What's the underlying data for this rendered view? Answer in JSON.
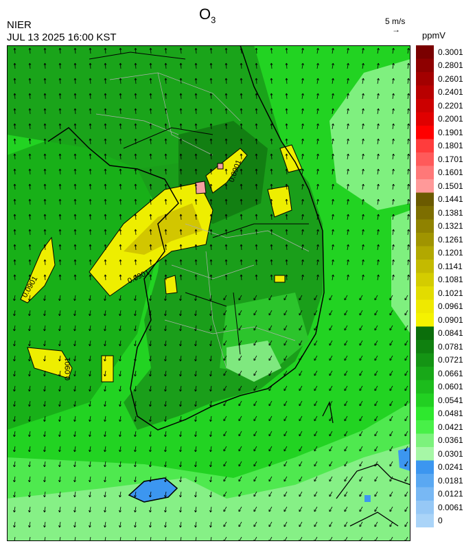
{
  "header": {
    "title_main": "O",
    "title_sub": "3",
    "agency": "NIER",
    "datetime": "JUL 13 2025 16:00 KST",
    "wind_reference": "5 m/s",
    "wind_arrow": "→",
    "unit": "ppmV"
  },
  "map": {
    "contour_label": "0.0901",
    "colors": {
      "ocean_dark": "#1fbd1f",
      "ocean": "#22d322",
      "land_green": "#1aa41a",
      "land_dark": "#0f7d0f",
      "light_green": "#7ff07f",
      "pale_green": "#9cf59c",
      "yellow": "#eeee00",
      "olive_yellow": "#d8d000",
      "pink": "#f4a0a0",
      "blue": "#3c96f0",
      "coast": "#000000",
      "admin": "#b0b0b0"
    }
  },
  "legend": {
    "labels": [
      "0.3001",
      "0.2801",
      "0.2601",
      "0.2401",
      "0.2201",
      "0.2001",
      "0.1901",
      "0.1801",
      "0.1701",
      "0.1601",
      "0.1501",
      "0.1441",
      "0.1381",
      "0.1321",
      "0.1261",
      "0.1201",
      "0.1141",
      "0.1081",
      "0.1021",
      "0.0961",
      "0.0901",
      "0.0841",
      "0.0781",
      "0.0721",
      "0.0661",
      "0.0601",
      "0.0541",
      "0.0481",
      "0.0421",
      "0.0361",
      "0.0301",
      "0.0241",
      "0.0181",
      "0.0121",
      "0.0061",
      "0"
    ],
    "colors": [
      "#7a0000",
      "#8e0000",
      "#a30000",
      "#b80000",
      "#cc0000",
      "#e00000",
      "#ff0000",
      "#ff3c3c",
      "#ff5a5a",
      "#ff7878",
      "#ff9999",
      "#6b5a00",
      "#7d6e00",
      "#8f8200",
      "#a09400",
      "#b2a800",
      "#c4ba00",
      "#d4cc00",
      "#e2dc00",
      "#efe900",
      "#f5f200",
      "#0b6e0b",
      "#0f800f",
      "#149414",
      "#18a818",
      "#1cbc1c",
      "#22d022",
      "#2ee82e",
      "#48f048",
      "#7cf27c",
      "#a6f7a6",
      "#3c96f0",
      "#5aa8f2",
      "#78b8f4",
      "#96c8f6",
      "#aad4f8"
    ]
  }
}
